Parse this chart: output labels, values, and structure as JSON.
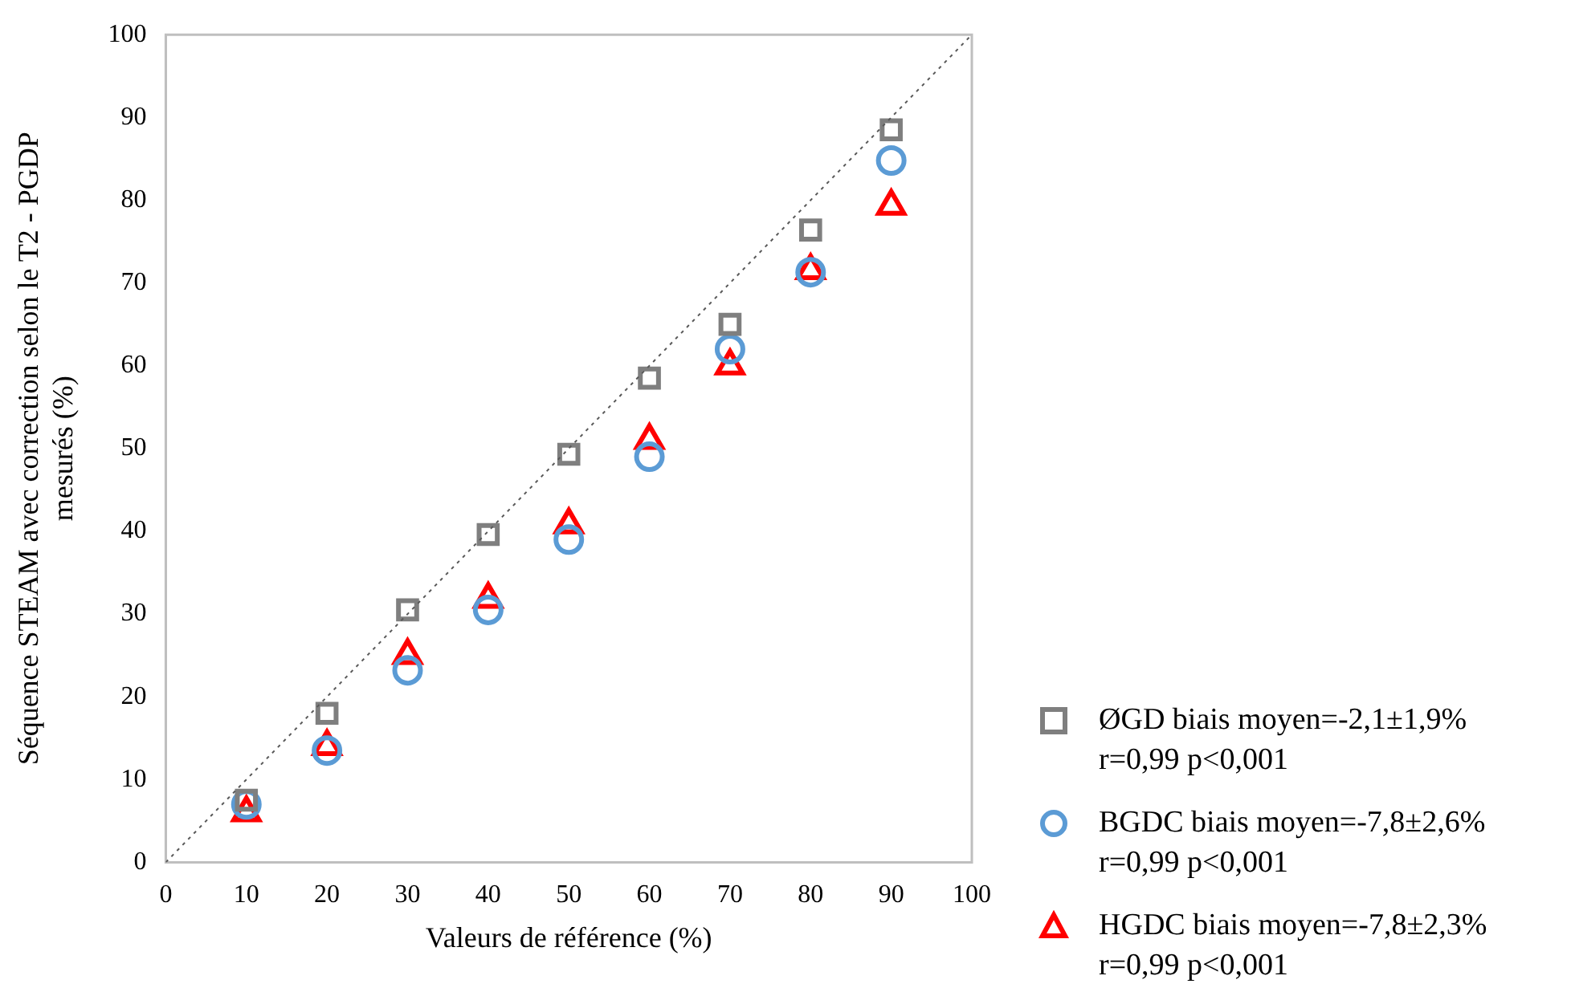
{
  "chart_data": {
    "type": "scatter",
    "xlabel": "Valeurs de référence (%)",
    "ylabel": "Séquence STEAM avec correction selon le T2 - PGDP\nmesurés (%)",
    "xlim": [
      0,
      100
    ],
    "ylim": [
      0,
      100
    ],
    "xticks": [
      0,
      10,
      20,
      30,
      40,
      50,
      60,
      70,
      80,
      90,
      100
    ],
    "yticks": [
      0,
      10,
      20,
      30,
      40,
      50,
      60,
      70,
      80,
      90,
      100
    ],
    "grid": false,
    "legend": "right",
    "x": [
      10,
      20,
      30,
      40,
      50,
      60,
      70,
      80,
      90
    ],
    "series": [
      {
        "type": "line",
        "x": [
          0,
          100
        ],
        "values": [
          0,
          100
        ],
        "color": "#595959",
        "marker": "none",
        "line_style": "dotted"
      },
      {
        "name": "ØGD biais moyen=-2,1±1,9%\nr=0,99 p<0,001",
        "color": "#7f7f7f",
        "marker": "square",
        "values": [
          7.5,
          18,
          30.5,
          39.6,
          49.3,
          58.5,
          65,
          76.4,
          88.5
        ]
      },
      {
        "name": "BGDC biais moyen=-7,8±2,6%\nr=0,99 p<0,001",
        "color": "#5b9bd5",
        "marker": "circle",
        "values": [
          7,
          13.5,
          23.2,
          30.5,
          39,
          49,
          62,
          71.3,
          84.8
        ]
      },
      {
        "name": "HGDC biais moyen=-7,8±2,3%\nr=0,99 p<0,001",
        "color": "#ff0000",
        "marker": "triangle",
        "values": [
          6,
          14,
          25,
          31.8,
          40.8,
          51,
          60,
          71.5,
          79.3
        ]
      }
    ]
  }
}
